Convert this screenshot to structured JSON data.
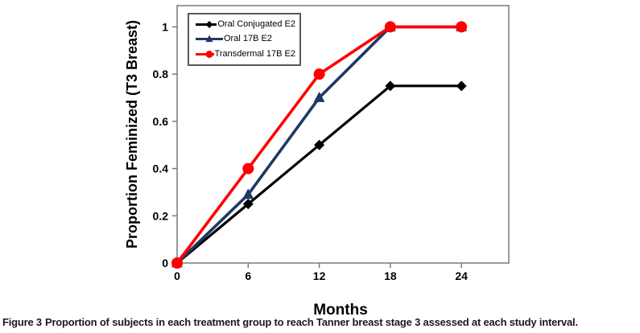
{
  "figure": {
    "caption_label": "Figure 3",
    "caption_text": "Proportion of subjects in each treatment group to reach Tanner breast stage 3 assessed at each study interval."
  },
  "chart_data": {
    "type": "line",
    "title": "",
    "xlabel": "Months",
    "ylabel": "Proportion Feminized (T3 Breast)",
    "x": [
      0,
      6,
      12,
      18,
      24
    ],
    "x_tick_labels": [
      "0",
      "6",
      "12",
      "18",
      "24"
    ],
    "y_ticks": [
      0,
      0.2,
      0.4,
      0.6,
      0.8,
      1
    ],
    "y_tick_labels": [
      "0",
      "0.2",
      "0.4",
      "0.6",
      "0.8",
      "1"
    ],
    "xlim": [
      0,
      28
    ],
    "ylim": [
      0,
      1.09
    ],
    "grid": false,
    "legend_position": "top-left-inside",
    "axis_color": "#7a7a7a",
    "legend_border_color": "#595959",
    "series": [
      {
        "name": "Oral Conjugated E2",
        "marker": "diamond",
        "color": "#000000",
        "line_width": 3.2,
        "values": [
          0,
          0.25,
          0.5,
          0.75,
          0.75
        ]
      },
      {
        "name": "Oral 17B E2",
        "marker": "triangle",
        "color": "#1F3864",
        "line_width": 3.6,
        "values": [
          0,
          0.29,
          0.7,
          1,
          1
        ]
      },
      {
        "name": "Transdermal 17B E2",
        "marker": "circle",
        "color": "#FF0000",
        "line_width": 3.6,
        "values": [
          0,
          0.4,
          0.8,
          1,
          1
        ]
      }
    ]
  }
}
